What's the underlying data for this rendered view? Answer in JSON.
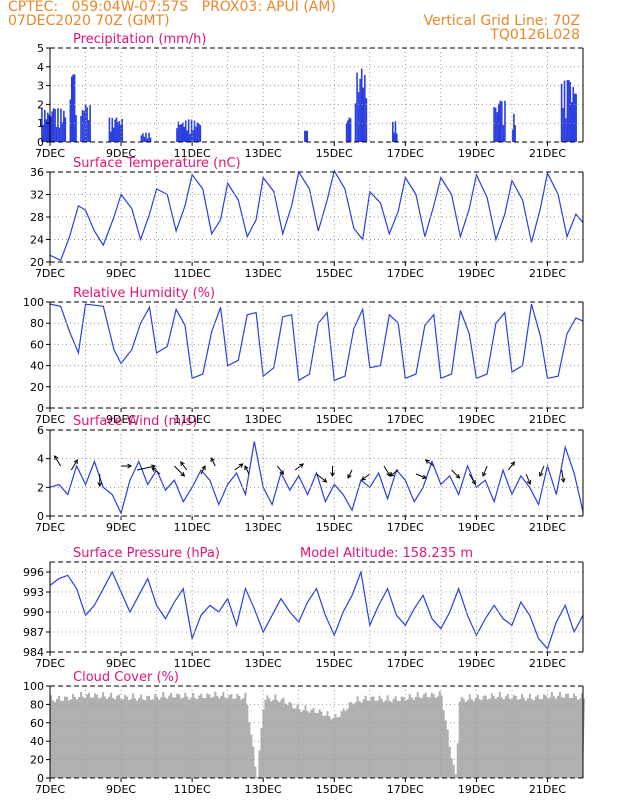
{
  "header": {
    "line1_left": "CPTEC:   059:04W-07:57S   PROX03: APUI (AM)",
    "line2_left": "07DEC2020 70Z (GMT)",
    "line2_right": "Vertical Grid Line: 70Z",
    "line3_right": "TQ0126L028"
  },
  "colors": {
    "header": "#e8882a",
    "title": "#e0147a",
    "series": "#2b3fe0",
    "cloud": "#b0b0b0",
    "grid": "#9a9a9a"
  },
  "chart_data": [
    {
      "type": "bar",
      "title": "Precipitation (mm/h)",
      "ylim": [
        0,
        5
      ],
      "yticks": [
        "0",
        "1",
        "2",
        "3",
        "4",
        "5"
      ],
      "xticks": [
        "7DEC",
        "9DEC",
        "11DEC",
        "13DEC",
        "15DEC",
        "17DEC",
        "19DEC",
        "21DEC"
      ],
      "x_start_day": 7,
      "x_end_day": 22,
      "bursts": [
        {
          "day": 7.1,
          "width": 0.7,
          "peak": 1.8
        },
        {
          "day": 7.65,
          "width": 0.2,
          "peak": 3.6
        },
        {
          "day": 8.0,
          "width": 0.3,
          "peak": 2.0
        },
        {
          "day": 8.85,
          "width": 0.4,
          "peak": 1.3
        },
        {
          "day": 9.7,
          "width": 0.3,
          "peak": 0.5
        },
        {
          "day": 10.9,
          "width": 0.7,
          "peak": 1.2
        },
        {
          "day": 14.2,
          "width": 0.1,
          "peak": 0.6
        },
        {
          "day": 15.4,
          "width": 0.15,
          "peak": 1.3
        },
        {
          "day": 15.75,
          "width": 0.35,
          "peak": 3.9
        },
        {
          "day": 16.7,
          "width": 0.15,
          "peak": 1.1
        },
        {
          "day": 19.65,
          "width": 0.35,
          "peak": 2.2
        },
        {
          "day": 20.05,
          "width": 0.1,
          "peak": 1.5
        },
        {
          "day": 21.6,
          "width": 0.45,
          "peak": 3.3
        }
      ]
    },
    {
      "type": "line",
      "title": "Surface Temperature (nC)",
      "ylim": [
        20,
        36
      ],
      "yticks": [
        "20",
        "24",
        "28",
        "32",
        "36"
      ],
      "xticks": [
        "7DEC",
        "9DEC",
        "11DEC",
        "13DEC",
        "15DEC",
        "17DEC",
        "19DEC",
        "21DEC"
      ],
      "x_start_day": 7,
      "x_end_day": 22,
      "x": [
        7.0,
        7.3,
        7.55,
        7.8,
        8.0,
        8.25,
        8.5,
        8.8,
        9.0,
        9.3,
        9.55,
        9.8,
        10.0,
        10.3,
        10.55,
        10.8,
        11.0,
        11.3,
        11.55,
        11.8,
        12.0,
        12.3,
        12.55,
        12.8,
        13.0,
        13.3,
        13.55,
        13.8,
        14.0,
        14.3,
        14.55,
        14.8,
        15.0,
        15.3,
        15.55,
        15.8,
        16.0,
        16.3,
        16.55,
        16.8,
        17.0,
        17.3,
        17.55,
        17.8,
        18.0,
        18.3,
        18.55,
        18.8,
        19.0,
        19.3,
        19.55,
        19.8,
        20.0,
        20.3,
        20.55,
        20.8,
        21.0,
        21.3,
        21.55,
        21.8,
        22.0
      ],
      "y": [
        21.2,
        20.3,
        24.5,
        30.0,
        29.2,
        25.5,
        23.0,
        28.0,
        32.0,
        29.5,
        24.0,
        28.5,
        33.0,
        32.0,
        25.5,
        30.0,
        35.5,
        33.0,
        25.0,
        27.5,
        34.0,
        31.0,
        24.5,
        27.5,
        35.0,
        32.5,
        25.0,
        30.0,
        36.0,
        33.0,
        25.5,
        31.0,
        36.2,
        33.0,
        26.0,
        24.0,
        32.5,
        30.5,
        25.0,
        29.0,
        35.0,
        32.0,
        24.5,
        30.0,
        35.0,
        32.0,
        24.5,
        29.5,
        35.5,
        31.5,
        24.0,
        28.5,
        34.5,
        31.0,
        23.5,
        29.5,
        35.8,
        32.0,
        24.5,
        28.5,
        27.0
      ]
    },
    {
      "type": "line",
      "title": "Relative Humidity (%)",
      "ylim": [
        0,
        100
      ],
      "yticks": [
        "0",
        "20",
        "40",
        "60",
        "80",
        "100"
      ],
      "xticks": [
        "7DEC",
        "9DEC",
        "11DEC",
        "13DEC",
        "15DEC",
        "17DEC",
        "19DEC",
        "21DEC"
      ],
      "x_start_day": 7,
      "x_end_day": 22,
      "x": [
        7.0,
        7.3,
        7.55,
        7.8,
        8.0,
        8.25,
        8.5,
        8.8,
        9.0,
        9.3,
        9.55,
        9.8,
        10.0,
        10.3,
        10.55,
        10.8,
        11.0,
        11.3,
        11.55,
        11.8,
        12.0,
        12.3,
        12.55,
        12.8,
        13.0,
        13.3,
        13.55,
        13.8,
        14.0,
        14.3,
        14.55,
        14.8,
        15.0,
        15.3,
        15.55,
        15.8,
        16.0,
        16.3,
        16.55,
        16.8,
        17.0,
        17.3,
        17.55,
        17.8,
        18.0,
        18.3,
        18.55,
        18.8,
        19.0,
        19.3,
        19.55,
        19.8,
        20.0,
        20.3,
        20.55,
        20.8,
        21.0,
        21.3,
        21.55,
        21.8,
        22.0
      ],
      "y": [
        98,
        96,
        72,
        52,
        98,
        97,
        96,
        55,
        42,
        55,
        80,
        95,
        52,
        58,
        93,
        78,
        28,
        32,
        72,
        95,
        40,
        45,
        88,
        90,
        30,
        38,
        86,
        88,
        26,
        32,
        80,
        90,
        26,
        30,
        75,
        93,
        38,
        40,
        88,
        80,
        28,
        32,
        78,
        88,
        28,
        32,
        92,
        70,
        28,
        32,
        80,
        90,
        34,
        40,
        98,
        68,
        28,
        30,
        70,
        85,
        82
      ]
    },
    {
      "type": "line",
      "title": "Surface Wind (m/s)",
      "ylim": [
        0,
        6
      ],
      "yticks": [
        "0",
        "2",
        "4",
        "6"
      ],
      "xticks": [
        "7DEC",
        "9DEC",
        "11DEC",
        "13DEC",
        "15DEC",
        "17DEC",
        "19DEC",
        "21DEC"
      ],
      "x_start_day": 7,
      "x_end_day": 22,
      "x": [
        7.0,
        7.25,
        7.5,
        7.75,
        8.0,
        8.25,
        8.5,
        8.75,
        9.0,
        9.25,
        9.5,
        9.75,
        10.0,
        10.25,
        10.5,
        10.75,
        11.0,
        11.25,
        11.5,
        11.75,
        12.0,
        12.25,
        12.5,
        12.75,
        13.0,
        13.25,
        13.5,
        13.75,
        14.0,
        14.25,
        14.5,
        14.75,
        15.0,
        15.25,
        15.5,
        15.75,
        16.0,
        16.25,
        16.5,
        16.75,
        17.0,
        17.25,
        17.5,
        17.75,
        18.0,
        18.25,
        18.5,
        18.75,
        19.0,
        19.25,
        19.5,
        19.75,
        20.0,
        20.25,
        20.5,
        20.75,
        21.0,
        21.25,
        21.5,
        21.75,
        22.0
      ],
      "y": [
        2.0,
        2.2,
        1.5,
        3.5,
        2.2,
        3.8,
        2.0,
        1.5,
        0.2,
        2.5,
        3.8,
        2.2,
        3.2,
        1.8,
        2.5,
        1.0,
        2.0,
        3.2,
        2.5,
        0.8,
        2.2,
        3.0,
        1.5,
        5.2,
        2.0,
        0.8,
        3.0,
        1.8,
        2.8,
        1.5,
        3.0,
        1.0,
        2.2,
        1.5,
        0.4,
        2.5,
        2.0,
        3.0,
        1.2,
        3.2,
        2.5,
        1.0,
        2.0,
        3.8,
        2.2,
        2.8,
        1.5,
        3.5,
        2.0,
        2.5,
        1.0,
        3.2,
        1.5,
        2.8,
        2.0,
        0.8,
        3.5,
        1.5,
        4.8,
        3.0,
        0.3
      ],
      "arrows": [
        {
          "day": 7.3,
          "dx": -6,
          "dy": -10
        },
        {
          "day": 7.6,
          "dx": 6,
          "dy": -10
        },
        {
          "day": 8.4,
          "dx": 0,
          "dy": 12
        },
        {
          "day": 9.0,
          "dx": 10,
          "dy": 0
        },
        {
          "day": 9.45,
          "dx": 18,
          "dy": -4
        },
        {
          "day": 10.1,
          "dx": -8,
          "dy": -6
        },
        {
          "day": 10.5,
          "dx": 10,
          "dy": 10
        },
        {
          "day": 10.85,
          "dx": -6,
          "dy": -8
        },
        {
          "day": 11.25,
          "dx": 4,
          "dy": -8
        },
        {
          "day": 11.65,
          "dx": -4,
          "dy": -8
        },
        {
          "day": 12.2,
          "dx": 8,
          "dy": -6
        },
        {
          "day": 12.6,
          "dx": -4,
          "dy": -8
        },
        {
          "day": 13.4,
          "dx": 6,
          "dy": 8
        },
        {
          "day": 13.9,
          "dx": 8,
          "dy": -6
        },
        {
          "day": 14.5,
          "dx": 10,
          "dy": 8
        },
        {
          "day": 14.95,
          "dx": 0,
          "dy": 10
        },
        {
          "day": 15.5,
          "dx": -4,
          "dy": 8
        },
        {
          "day": 16.0,
          "dx": -8,
          "dy": 6
        },
        {
          "day": 16.4,
          "dx": 6,
          "dy": 10
        },
        {
          "day": 16.8,
          "dx": -8,
          "dy": 6
        },
        {
          "day": 17.3,
          "dx": 10,
          "dy": 4
        },
        {
          "day": 17.8,
          "dx": -8,
          "dy": -6
        },
        {
          "day": 18.3,
          "dx": 8,
          "dy": 8
        },
        {
          "day": 18.8,
          "dx": 6,
          "dy": 10
        },
        {
          "day": 19.3,
          "dx": -4,
          "dy": 10
        },
        {
          "day": 19.9,
          "dx": 6,
          "dy": -8
        },
        {
          "day": 20.4,
          "dx": 4,
          "dy": 10
        },
        {
          "day": 20.9,
          "dx": -4,
          "dy": 10
        },
        {
          "day": 21.4,
          "dx": 2,
          "dy": 12
        }
      ]
    },
    {
      "type": "line",
      "title": "Surface Pressure (hPa)",
      "annotation": "Model Altitude: 158.235  m",
      "ylim": [
        984,
        997.5
      ],
      "yticks": [
        "984",
        "987",
        "990",
        "993",
        "996"
      ],
      "xticks": [
        "7DEC",
        "9DEC",
        "11DEC",
        "13DEC",
        "15DEC",
        "17DEC",
        "19DEC",
        "21DEC"
      ],
      "x_start_day": 7,
      "x_end_day": 22,
      "x": [
        7.0,
        7.25,
        7.5,
        7.75,
        8.0,
        8.25,
        8.5,
        8.75,
        9.0,
        9.25,
        9.5,
        9.75,
        10.0,
        10.25,
        10.5,
        10.75,
        11.0,
        11.25,
        11.5,
        11.75,
        12.0,
        12.25,
        12.5,
        12.75,
        13.0,
        13.25,
        13.5,
        13.75,
        14.0,
        14.25,
        14.5,
        14.75,
        15.0,
        15.25,
        15.5,
        15.75,
        16.0,
        16.25,
        16.5,
        16.75,
        17.0,
        17.25,
        17.5,
        17.75,
        18.0,
        18.25,
        18.5,
        18.75,
        19.0,
        19.25,
        19.5,
        19.75,
        20.0,
        20.25,
        20.5,
        20.75,
        21.0,
        21.25,
        21.5,
        21.75,
        22.0
      ],
      "y": [
        994.0,
        995.0,
        995.5,
        993.5,
        989.5,
        991.0,
        993.5,
        996.0,
        993.0,
        990.0,
        992.5,
        995.0,
        991.0,
        989.0,
        991.5,
        993.5,
        986.0,
        989.5,
        991.0,
        990.0,
        992.0,
        988.0,
        993.5,
        990.5,
        987.0,
        989.5,
        992.0,
        990.0,
        988.5,
        991.5,
        993.5,
        989.5,
        986.5,
        990.0,
        992.5,
        996.0,
        988.0,
        991.0,
        993.5,
        989.5,
        988.0,
        990.5,
        992.5,
        989.0,
        987.5,
        990.0,
        993.5,
        989.5,
        986.5,
        989.0,
        991.0,
        989.0,
        988.0,
        991.5,
        989.5,
        986.0,
        984.5,
        988.5,
        991.0,
        987.0,
        989.5
      ]
    },
    {
      "type": "area",
      "title": "Cloud Cover (%)",
      "ylim": [
        0,
        100
      ],
      "yticks": [
        "0",
        "20",
        "40",
        "60",
        "80",
        "100"
      ],
      "xticks": [
        "7DEC",
        "9DEC",
        "11DEC",
        "13DEC",
        "15DEC",
        "17DEC",
        "19DEC",
        "21DEC"
      ],
      "x_start_day": 7,
      "x_end_day": 22,
      "x": [
        7.0,
        7.5,
        8.0,
        8.5,
        9.0,
        9.5,
        10.0,
        10.5,
        11.0,
        11.5,
        12.0,
        12.5,
        12.8,
        13.0,
        13.5,
        14.0,
        14.5,
        15.0,
        15.5,
        16.0,
        16.5,
        17.0,
        17.5,
        18.0,
        18.2,
        18.4,
        18.5,
        19.0,
        19.5,
        20.0,
        20.5,
        21.0,
        21.5,
        22.0
      ],
      "y": [
        90,
        92,
        95,
        94,
        93,
        92,
        93,
        95,
        93,
        95,
        94,
        93,
        5,
        92,
        90,
        80,
        78,
        70,
        88,
        92,
        90,
        92,
        95,
        95,
        45,
        5,
        90,
        92,
        94,
        93,
        92,
        94,
        95,
        92
      ]
    }
  ]
}
